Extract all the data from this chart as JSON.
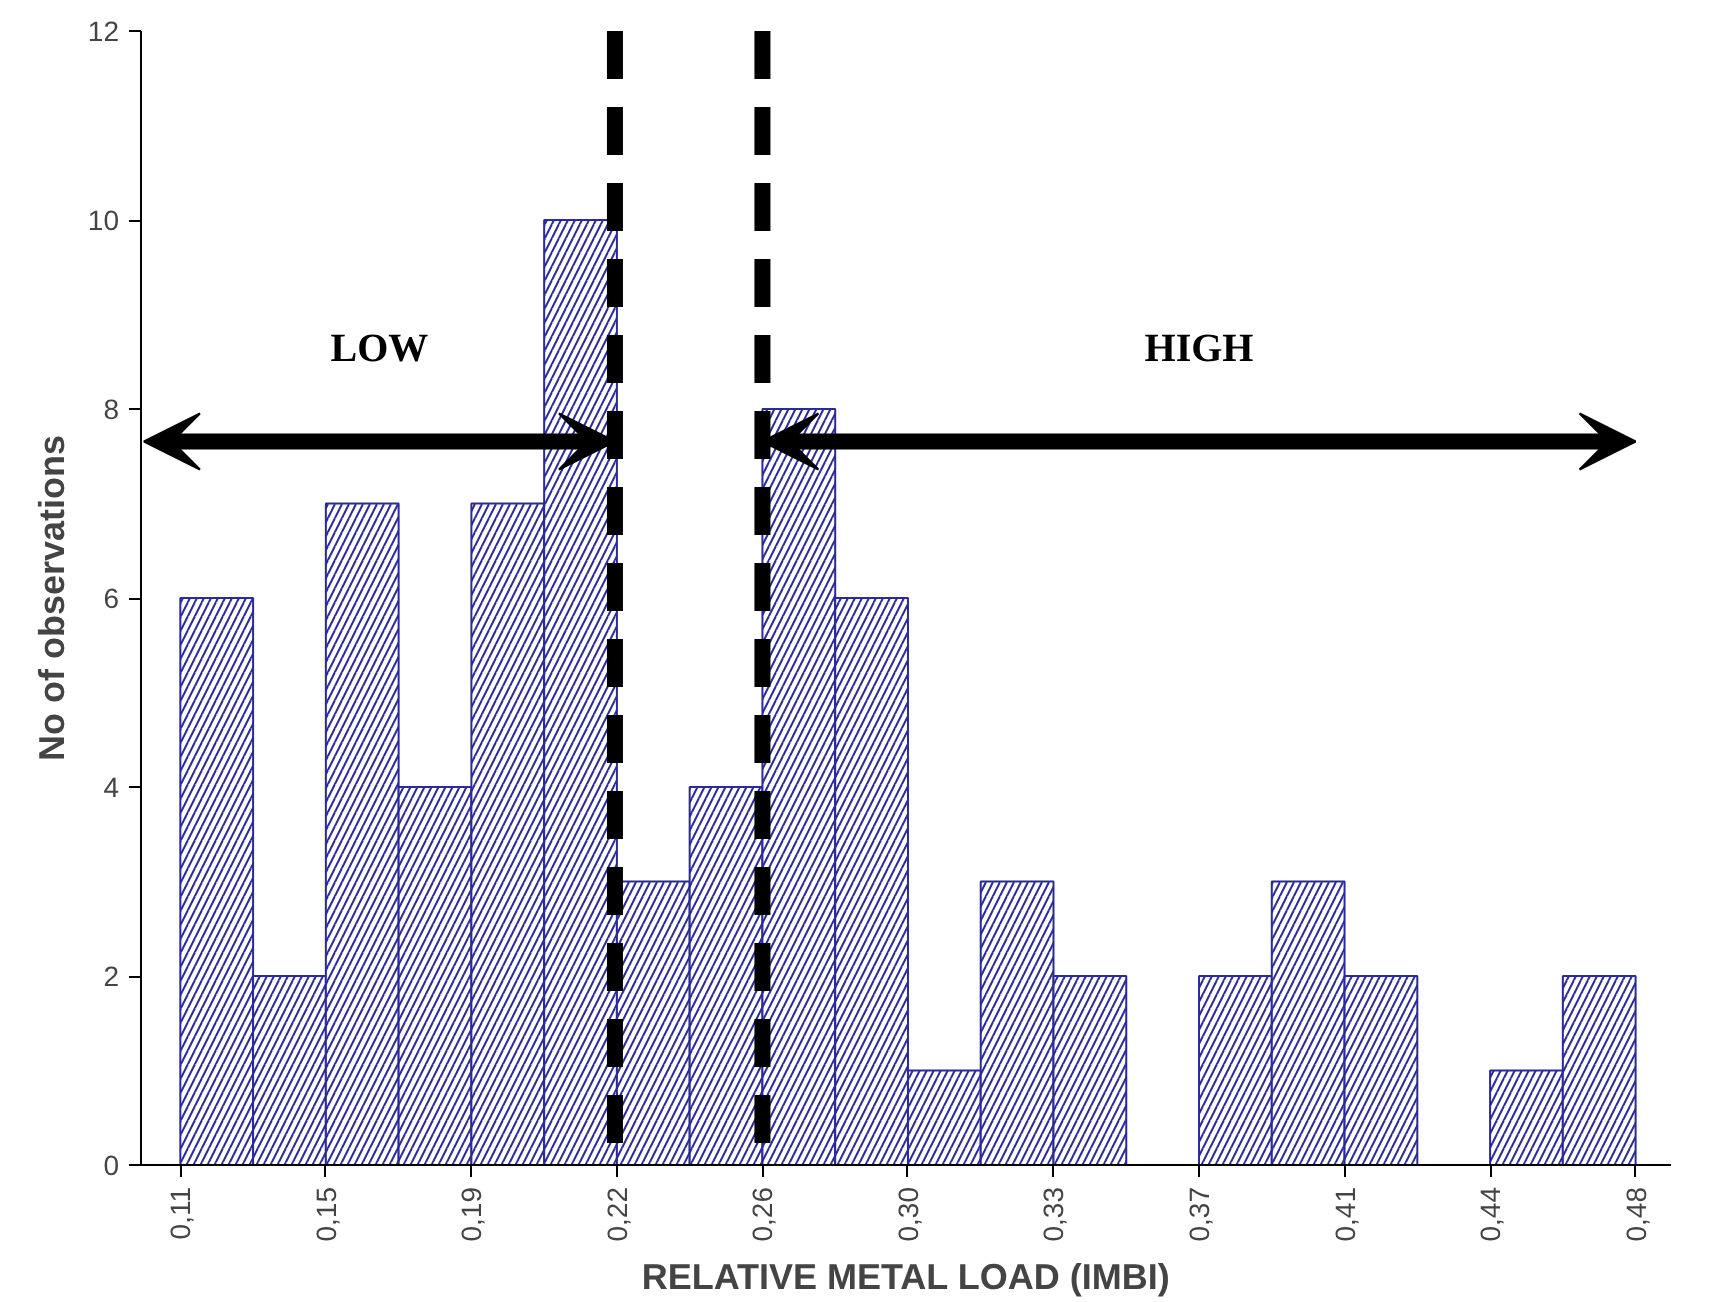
{
  "chart_data": {
    "type": "histogram",
    "xlabel": "RELATIVE METAL LOAD (IMBI)",
    "ylabel": "No of observations",
    "bins": [
      0.1115,
      0.13,
      0.1485,
      0.167,
      0.1855,
      0.204,
      0.2225,
      0.241,
      0.2595,
      0.278,
      0.2965,
      0.315,
      0.3335,
      0.352,
      0.3705,
      0.389,
      0.4075,
      0.426,
      0.4445,
      0.463,
      0.4815
    ],
    "values": [
      6,
      2,
      7,
      4,
      7,
      10,
      3,
      4,
      8,
      6,
      1,
      3,
      2,
      0,
      2,
      3,
      2,
      0,
      1,
      2
    ],
    "color": "#2a2a9a",
    "xlim": [
      0.1015,
      0.4905
    ],
    "ylim": [
      0,
      12
    ],
    "xticks": [
      {
        "value": 0.1115,
        "label": "0,11"
      },
      {
        "value": 0.1485,
        "label": "0,15"
      },
      {
        "value": 0.1855,
        "label": "0,19"
      },
      {
        "value": 0.2225,
        "label": "0,22"
      },
      {
        "value": 0.2595,
        "label": "0,26"
      },
      {
        "value": 0.2965,
        "label": "0,30"
      },
      {
        "value": 0.3335,
        "label": "0,33"
      },
      {
        "value": 0.3705,
        "label": "0,37"
      },
      {
        "value": 0.4075,
        "label": "0,41"
      },
      {
        "value": 0.4445,
        "label": "0,44"
      },
      {
        "value": 0.4815,
        "label": "0,48"
      }
    ],
    "yticks": [
      0,
      2,
      4,
      6,
      8,
      10,
      12
    ],
    "grid": false,
    "ref_lines": [
      {
        "axis": "x",
        "value": 0.222,
        "color": "#000000",
        "line_style": "dashed"
      },
      {
        "axis": "x",
        "value": 0.2595,
        "color": "#000000",
        "line_style": "dashed"
      }
    ],
    "annotations": [
      "LOW",
      "HIGH"
    ]
  }
}
